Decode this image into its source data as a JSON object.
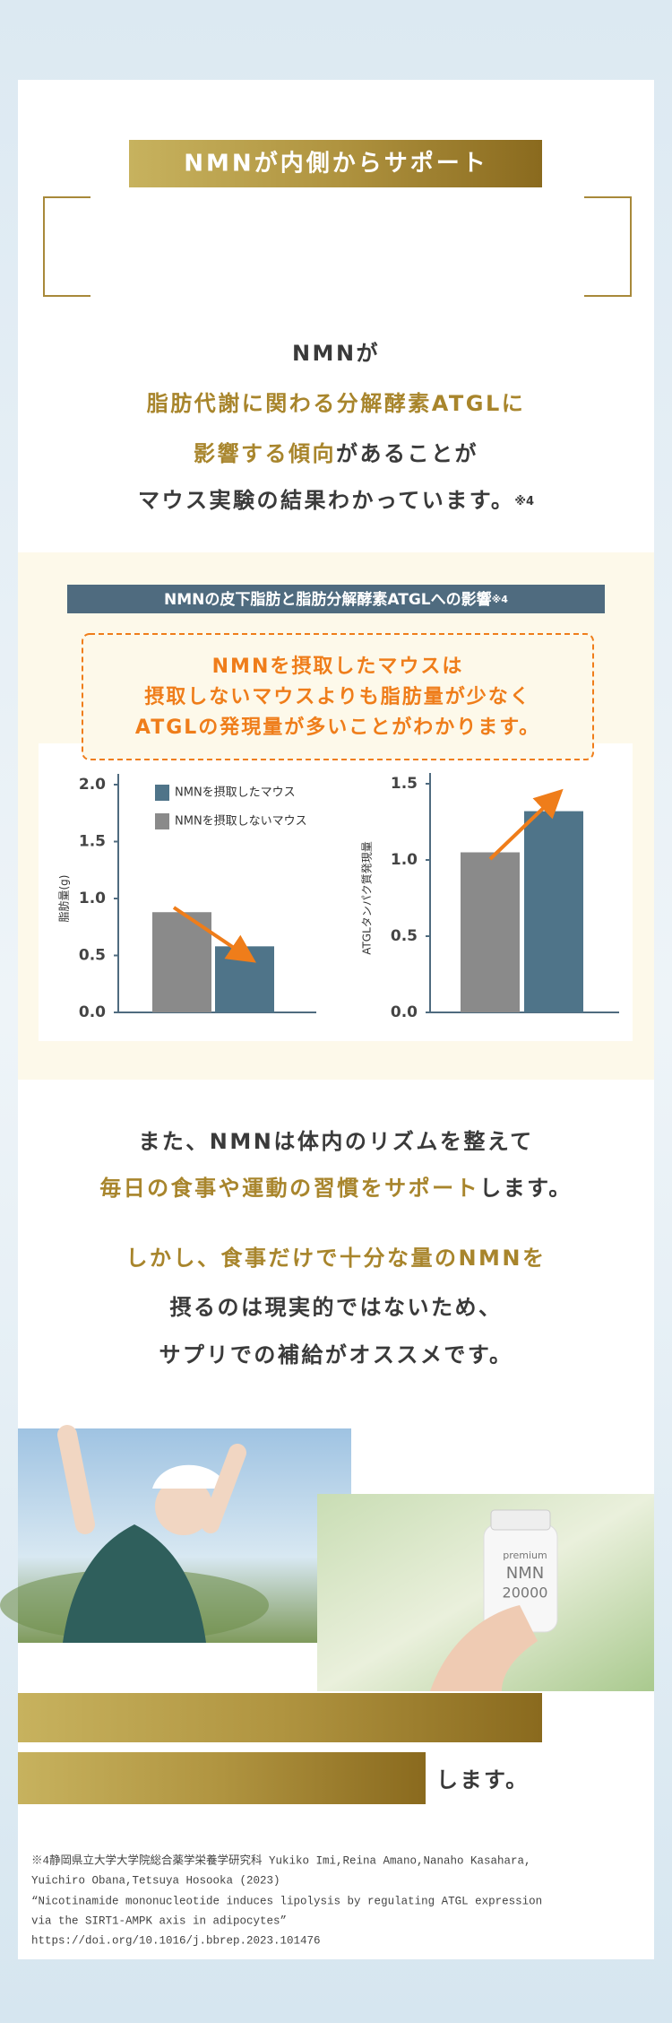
{
  "header": {
    "banner": "NMNが内側からサポート"
  },
  "intro": [
    "NMNが",
    "脂肪代謝に関わる分解酵素ATGLに",
    "影響する傾向",
    "があることが",
    "マウス実験の結果わかっています。",
    "※4"
  ],
  "figure": {
    "title": "NMNの皮下脂肪と脂肪分解酵素ATGLへの影響",
    "note": "※4",
    "callout": [
      "NMNを摂取したマウスは",
      "摂取しないマウスよりも脂肪量が少なく",
      "ATGLの発現量が多いことがわかります。"
    ]
  },
  "chart_data": [
    {
      "type": "bar",
      "ylabel": "脂肪量(g)",
      "categories": [
        null
      ],
      "series": [
        {
          "name": "NMNを摂取したマウス",
          "color": "#4f7489",
          "values": [
            0.58
          ]
        },
        {
          "name": "NMNを摂取しないマウス",
          "color": "#8a8a8a",
          "values": [
            0.88
          ]
        }
      ],
      "ylim": [
        0,
        2
      ],
      "yticks": [
        {
          "value": 0,
          "label": "0.0"
        },
        0.5,
        {
          "value": 1,
          "label": "1.0"
        },
        1.5,
        {
          "value": 2,
          "label": "2.0"
        }
      ]
    },
    {
      "type": "bar",
      "ylabel": "ATGLタンパク質発現量",
      "categories": [
        null
      ],
      "series": [
        {
          "color": "#4f7489",
          "values": [
            1.32
          ]
        },
        {
          "color": "#8a8a8a",
          "values": [
            1.05
          ]
        }
      ],
      "ylim": [
        0,
        1.5
      ],
      "yticks": [
        {
          "value": 0,
          "label": "0.0"
        },
        0.5,
        {
          "value": 1,
          "label": "1.0"
        },
        1.5
      ]
    }
  ],
  "body": [
    "また、NMNは体内のリズムを整えて",
    "毎日の食事や運動の習慣をサポート",
    "します。",
    "しかし、食事だけで十分な量のNMNを",
    "摂るのは現実的ではないため、",
    "サプリでの補給がオススメです。"
  ],
  "photo_label": [
    "premium",
    "NMN",
    "20000"
  ],
  "closing": "します。",
  "footnote": [
    "※4静岡県立大学大学院総合薬学栄養学研究科 Yukiko Imi,Reina Amano,Nanaho Kasahara,",
    "Yuichiro Obana,Tetsuya Hosooka (2023)",
    "“Nicotinamide mononucleotide induces lipolysis by regulating ATGL expression",
    "via the SIRT1-AMPK axis in adipocytes”",
    "https://doi.org/10.1016/j.bbrep.2023.101476"
  ]
}
